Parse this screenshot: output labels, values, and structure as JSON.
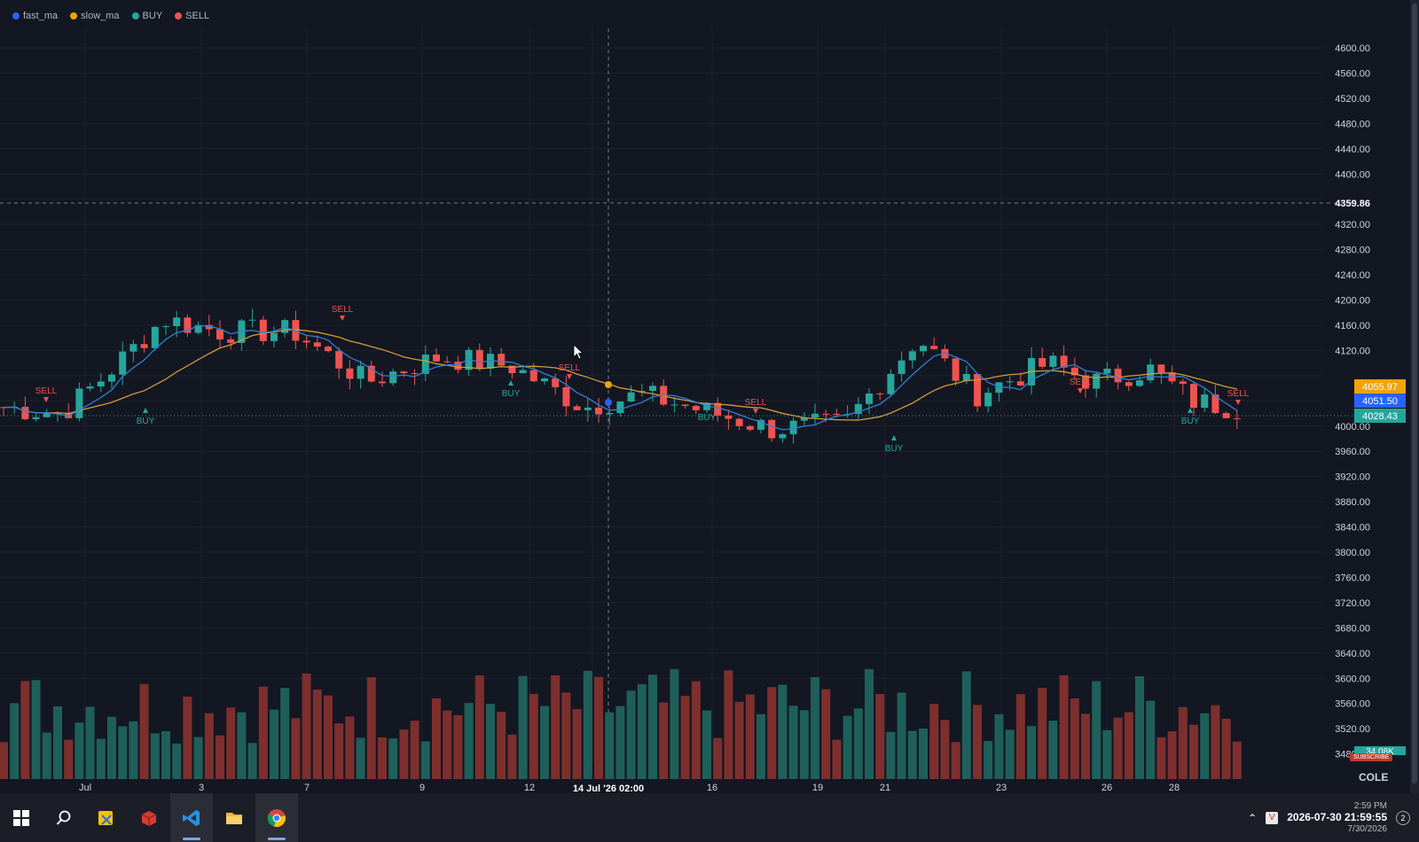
{
  "legend": [
    {
      "label": "fast_ma",
      "color": "#2962ff"
    },
    {
      "label": "slow_ma",
      "color": "#f0a30a"
    },
    {
      "label": "BUY",
      "color": "#26a69a"
    },
    {
      "label": "SELL",
      "color": "#ef5350"
    }
  ],
  "colors": {
    "up": "#26a69a",
    "down": "#ef5350",
    "fast": "#2f7fd8",
    "slow": "#d49a3a",
    "bg": "#131722",
    "grid": "#1e222d"
  },
  "price_axis": {
    "ticks": [
      "4600.00",
      "4560.00",
      "4520.00",
      "4480.00",
      "4440.00",
      "4400.00",
      "4320.00",
      "4280.00",
      "4240.00",
      "4200.00",
      "4160.00",
      "4120.00",
      "4000.00",
      "3960.00",
      "3920.00",
      "3880.00",
      "3840.00",
      "3800.00",
      "3760.00",
      "3720.00",
      "3680.00",
      "3640.00",
      "3600.00",
      "3560.00",
      "3520.00",
      "3480.00"
    ],
    "crosshair_label": "4359.86",
    "badges": [
      {
        "value": "4055.97",
        "color": "#f0a30a"
      },
      {
        "value": "4051.50",
        "color": "#2962ff"
      },
      {
        "value": "4028.43",
        "color": "#26a69a"
      }
    ],
    "partial_label": "34.08K"
  },
  "time_axis": {
    "labels": [
      "Jul",
      "3",
      "7",
      "9",
      "12",
      "16",
      "19",
      "21",
      "23",
      "26",
      "28"
    ],
    "crosshair_label": "14 Jul '26  02:00"
  },
  "signals": [
    {
      "label": "SELL",
      "type": "SELL"
    },
    {
      "label": "BUY",
      "type": "BUY"
    },
    {
      "label": "SELL",
      "type": "SELL"
    },
    {
      "label": "BUY",
      "type": "BUY"
    },
    {
      "label": "SELL",
      "type": "SELL"
    },
    {
      "label": "BUY",
      "type": "BUY"
    },
    {
      "label": "SELL",
      "type": "SELL"
    },
    {
      "label": "BUY",
      "type": "BUY"
    },
    {
      "label": "SELL",
      "type": "SELL"
    },
    {
      "label": "BUY",
      "type": "BUY"
    },
    {
      "label": "SELL",
      "type": "SELL"
    }
  ],
  "overlay": {
    "subscribe": "SUBSCRIBE",
    "logo": "COLE"
  },
  "taskbar": {
    "apps": [
      {
        "name": "windows-start",
        "icon": "windows-icon"
      },
      {
        "name": "search",
        "icon": "search-icon"
      },
      {
        "name": "app-yellow",
        "icon": "snip-icon"
      },
      {
        "name": "app-red",
        "icon": "box-icon"
      },
      {
        "name": "vscode",
        "icon": "vscode-icon"
      },
      {
        "name": "explorer",
        "icon": "folder-icon"
      },
      {
        "name": "chrome",
        "icon": "chrome-icon"
      }
    ],
    "time": "2:59 PM",
    "date": "7/30/2026",
    "overlay_clock": "2026-07-30  21:59:55",
    "notifications": "2"
  }
}
